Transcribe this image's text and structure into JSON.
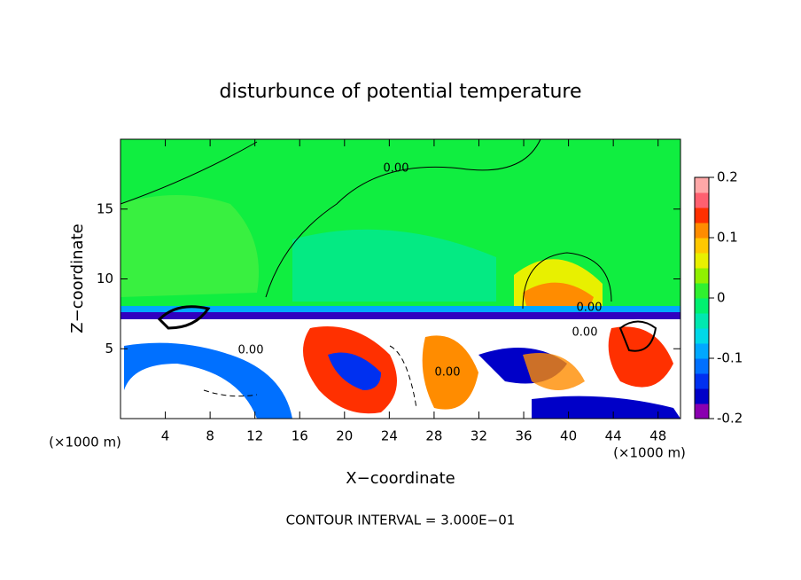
{
  "chart_data": {
    "type": "contour",
    "title": "disturbunce of potential temperature",
    "x_label": "X−coordinate",
    "y_label": "Z−coordinate",
    "x_unit": "(×1000 m)",
    "x_unit_right": "(×1000 m)",
    "footer": "CONTOUR INTERVAL = 3.000E−01",
    "xlim": [
      0,
      50
    ],
    "xticks": [
      4,
      8,
      12,
      16,
      20,
      24,
      28,
      32,
      36,
      40,
      44,
      48
    ],
    "ylim": [
      0,
      20
    ],
    "yticks": [
      5,
      10,
      15
    ],
    "contour_labels": [
      {
        "value": 0,
        "label": "0.00"
      },
      {
        "value": 0,
        "label": "0.00"
      },
      {
        "value": 0,
        "label": "0.00"
      },
      {
        "value": 0,
        "label": "0.00"
      },
      {
        "value": 0,
        "label": "0.00"
      }
    ],
    "colorbar": {
      "lim": [
        -0.2,
        0.2
      ],
      "ticks": [
        -0.2,
        -0.1,
        0,
        0.1,
        0.2
      ],
      "colors": [
        "#8a00b0",
        "#0000c8",
        "#0030f0",
        "#0070ff",
        "#00a8ff",
        "#00d8e8",
        "#00e8b0",
        "#00f070",
        "#30f030",
        "#90f000",
        "#e8f000",
        "#ffc800",
        "#ff8c00",
        "#ff3000",
        "#ff6070",
        "#ffa8a8"
      ]
    }
  }
}
